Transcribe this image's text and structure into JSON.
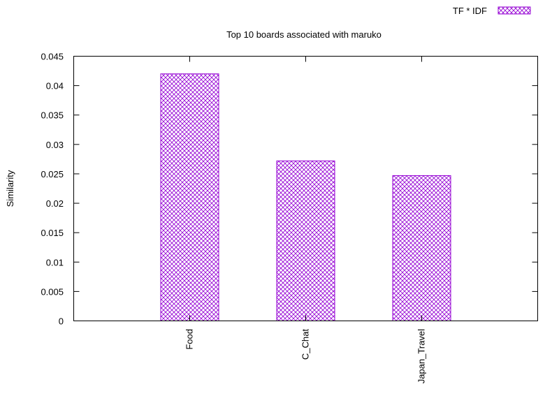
{
  "chart_data": {
    "type": "bar",
    "title": "Top 10 boards associated with maruko",
    "xlabel": "",
    "ylabel": "Similarity",
    "categories": [
      "Food",
      "C_Chat",
      "Japan_Travel"
    ],
    "series": [
      {
        "name": "TF * IDF",
        "values": [
          0.042,
          0.0272,
          0.0247
        ]
      }
    ],
    "ylim": [
      0,
      0.045
    ],
    "yticks": [
      "0",
      "0.005",
      "0.01",
      "0.015",
      "0.02",
      "0.025",
      "0.03",
      "0.035",
      "0.04",
      "0.045"
    ],
    "grid": false,
    "legend_position": "top-right",
    "bar_color": "#9400d3",
    "bar_pattern": "crosshatch"
  }
}
